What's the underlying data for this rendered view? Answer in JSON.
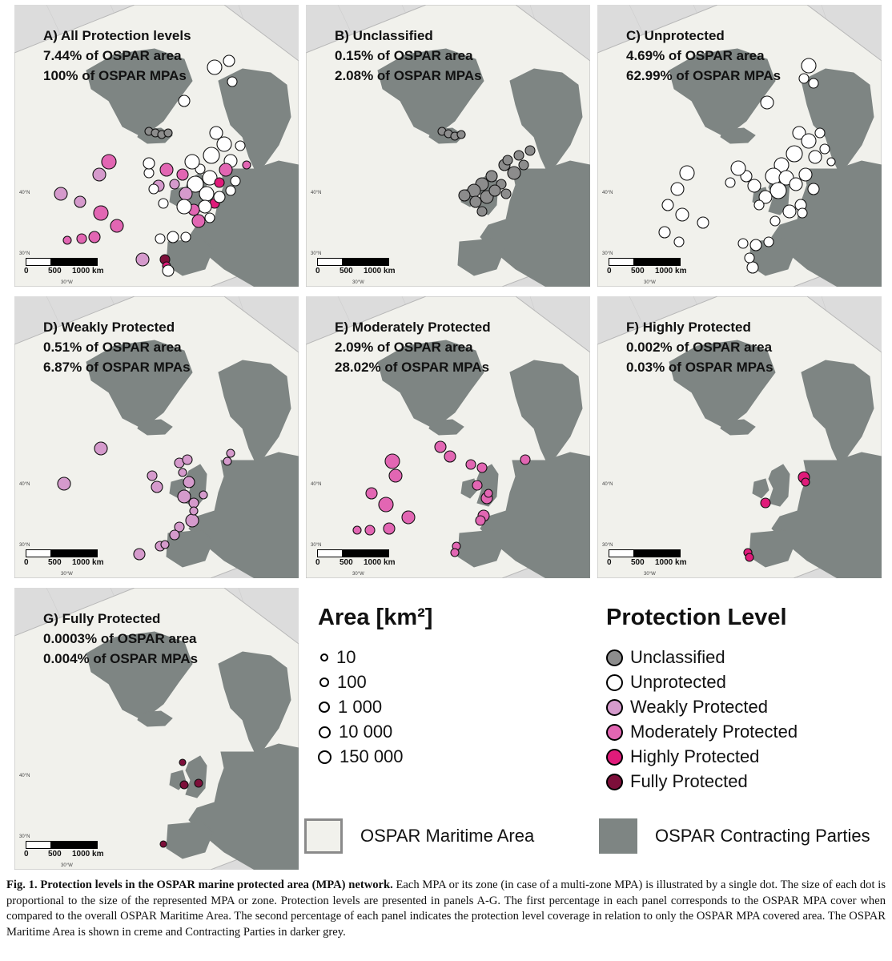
{
  "panels": [
    {
      "id": "A",
      "title": "A) All Protection levels",
      "line1": "7.44% of OSPAR area",
      "line2": "100% of OSPAR MPAs"
    },
    {
      "id": "B",
      "title": "B) Unclassified",
      "line1": "0.15% of OSPAR area",
      "line2": "2.08% of OSPAR MPAs"
    },
    {
      "id": "C",
      "title": "C) Unprotected",
      "line1": "4.69% of OSPAR area",
      "line2": "62.99% of OSPAR MPAs"
    },
    {
      "id": "D",
      "title": "D) Weakly Protected",
      "line1": "0.51% of OSPAR area",
      "line2": "6.87% of OSPAR MPAs"
    },
    {
      "id": "E",
      "title": "E) Moderately Protected",
      "line1": "2.09% of OSPAR area",
      "line2": "28.02% of OSPAR MPAs"
    },
    {
      "id": "F",
      "title": "F) Highly Protected",
      "line1": "0.002% of OSPAR area",
      "line2": "0.03% of OSPAR MPAs"
    },
    {
      "id": "G",
      "title": "G) Fully Protected",
      "line1": "0.0003% of OSPAR area",
      "line2": "0.004% of OSPAR MPAs"
    }
  ],
  "map": {
    "scale_labels": [
      "0",
      "500",
      "1000 km"
    ],
    "lat_ticks": [
      "40°N",
      "30°N"
    ],
    "lon_tick": "30°W"
  },
  "area_legend": {
    "title": "Area [km²]",
    "items": [
      "10",
      "100",
      "1 000",
      "10 000",
      "150 000"
    ]
  },
  "protection_legend": {
    "title": "Protection Level",
    "items": [
      {
        "label": "Unclassified",
        "color": "#8c8c8c"
      },
      {
        "label": "Unprotected",
        "color": "#ffffff"
      },
      {
        "label": "Weakly Protected",
        "color": "#d59acc"
      },
      {
        "label": "Moderately Protected",
        "color": "#e266b3"
      },
      {
        "label": "Highly Protected",
        "color": "#e01b7a"
      },
      {
        "label": "Fully Protected",
        "color": "#7d0f3a"
      }
    ]
  },
  "region_legend": {
    "maritime": {
      "label": "OSPAR Maritime Area",
      "color": "#f1f1ec"
    },
    "parties": {
      "label": "OSPAR Contracting Parties",
      "color": "#7e8583"
    }
  },
  "caption": {
    "bold": "Fig. 1.  Protection levels in the OSPAR marine protected area (MPA) network.",
    "text": " Each MPA or its zone (in case of a multi-zone MPA) is illustrated by a single dot. The size of each dot is proportional to the size of the represented MPA or zone. Protection levels are presented in panels A-G. The first percentage in each panel corresponds to the OSPAR MPA cover when compared to the overall OSPAR Maritime Area. The second percentage of each panel indicates the protection level coverage in relation to only the OSPAR MPA covered area. The OSPAR Maritime Area is shown in creme and Contracting Parties in darker grey."
  }
}
